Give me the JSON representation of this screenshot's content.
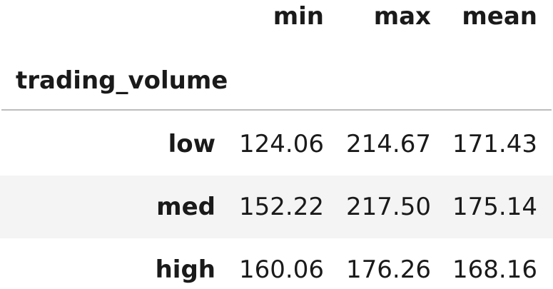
{
  "columns": [
    "min",
    "max",
    "mean"
  ],
  "index_name": "trading_volume",
  "rows": [
    {
      "label": "low",
      "values": [
        "124.06",
        "214.67",
        "171.43"
      ]
    },
    {
      "label": "med",
      "values": [
        "152.22",
        "217.50",
        "175.14"
      ]
    },
    {
      "label": "high",
      "values": [
        "160.06",
        "176.26",
        "168.16"
      ]
    }
  ],
  "colors": {
    "striped_row": "#f4f4f4",
    "rule": "#bdbdbd",
    "text": "#1a1a1a"
  }
}
